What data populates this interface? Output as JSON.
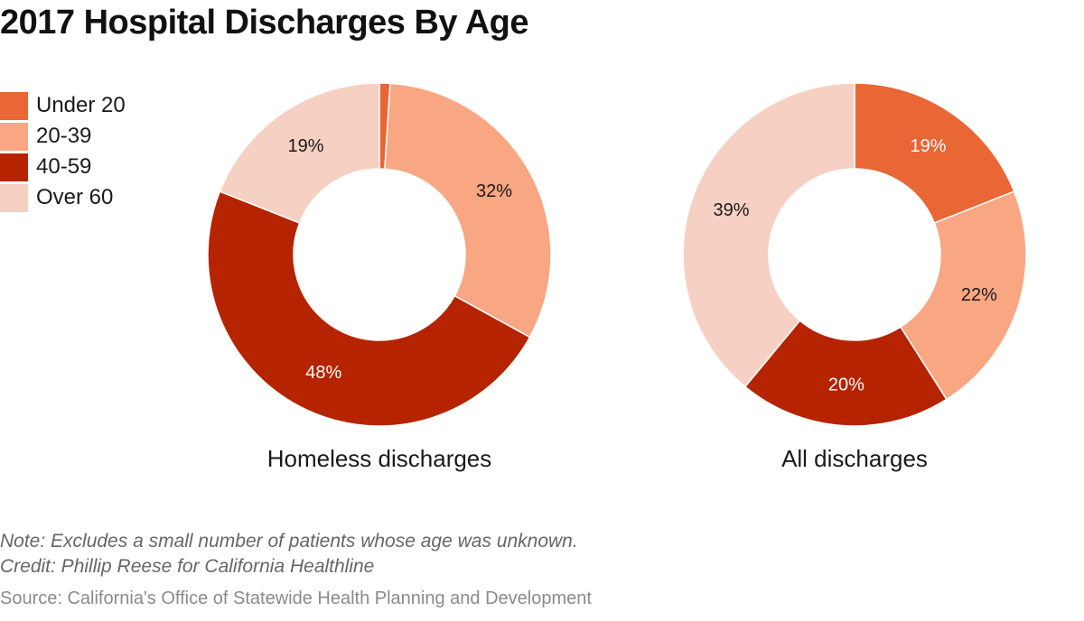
{
  "title": "2017 Hospital Discharges By Age",
  "legend": [
    {
      "label": "Under 20",
      "color": "#e96635"
    },
    {
      "label": "20-39",
      "color": "#f9a682"
    },
    {
      "label": "40-59",
      "color": "#b62300"
    },
    {
      "label": "Over 60",
      "color": "#f6d0c2"
    }
  ],
  "chart_data": [
    {
      "type": "pie",
      "title": "Homeless discharges",
      "categories": [
        "Under 20",
        "20-39",
        "40-59",
        "Over 60"
      ],
      "values": [
        1,
        32,
        48,
        19
      ],
      "labels": [
        "",
        "32%",
        "48%",
        "19%"
      ],
      "colors": [
        "#e96635",
        "#f9a682",
        "#b62300",
        "#f6d0c2"
      ],
      "label_colors": [
        "#ffffff",
        "#1a1a1a",
        "#ffffff",
        "#1a1a1a"
      ]
    },
    {
      "type": "pie",
      "title": "All discharges",
      "categories": [
        "Under 20",
        "20-39",
        "40-59",
        "Over 60"
      ],
      "values": [
        19,
        22,
        20,
        39
      ],
      "labels": [
        "19%",
        "22%",
        "20%",
        "39%"
      ],
      "colors": [
        "#e96635",
        "#f9a682",
        "#b62300",
        "#f6d0c2"
      ],
      "label_colors": [
        "#ffffff",
        "#1a1a1a",
        "#ffffff",
        "#1a1a1a"
      ]
    }
  ],
  "footer": {
    "note": "Note: Excludes a small number of patients whose age was unknown.",
    "credit": "Credit: Phillip Reese for California Healthline",
    "source": "Source: California's Office of Statewide Health Planning and Development"
  }
}
